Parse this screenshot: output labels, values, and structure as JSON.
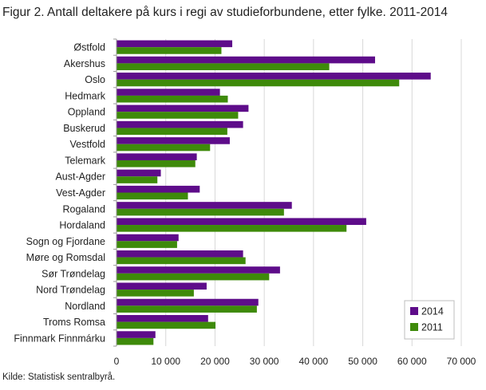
{
  "title": "Figur 2. Antall deltakere på kurs i regi av studieforbundene, etter fylke. 2011-2014",
  "source": "Kilde: Statistisk sentralbyrå.",
  "colors": {
    "s2014": "#5e0c8a",
    "s2011": "#3e8a0a",
    "grid": "#d8d8d8",
    "axis": "#999999"
  },
  "chart_data": {
    "type": "bar",
    "orientation": "horizontal",
    "categories": [
      "Østfold",
      "Akershus",
      "Oslo",
      "Hedmark",
      "Oppland",
      "Buskerud",
      "Vestfold",
      "Telemark",
      "Aust-Agder",
      "Vest-Agder",
      "Rogaland",
      "Hordaland",
      "Sogn og Fjordane",
      "Møre og Romsdal",
      "Sør Trøndelag",
      "Nord Trøndelag",
      "Nordland",
      "Troms Romsa",
      "Finnmark Finnmárku"
    ],
    "series": [
      {
        "name": "2014",
        "color": "#5e0c8a",
        "values": [
          23500,
          52500,
          63800,
          21000,
          26800,
          25700,
          23000,
          16300,
          9000,
          16900,
          35600,
          50700,
          12600,
          25700,
          33200,
          18300,
          28800,
          18600,
          7900
        ]
      },
      {
        "name": "2011",
        "color": "#3e8a0a",
        "values": [
          21300,
          43200,
          57400,
          22600,
          24700,
          22500,
          19000,
          16000,
          8300,
          14500,
          34000,
          46700,
          12300,
          26200,
          31000,
          15700,
          28500,
          20100,
          7500
        ]
      }
    ],
    "xlim": [
      0,
      70000
    ],
    "xticks": [
      0,
      10000,
      20000,
      30000,
      40000,
      50000,
      60000,
      70000
    ],
    "xtick_labels": [
      "0",
      "10 000",
      "20 000",
      "30 000",
      "40 000",
      "50 000",
      "60 000",
      "70 000"
    ],
    "legend": {
      "position": "bottom-right",
      "entries": [
        "2014",
        "2011"
      ]
    },
    "grid": true
  }
}
